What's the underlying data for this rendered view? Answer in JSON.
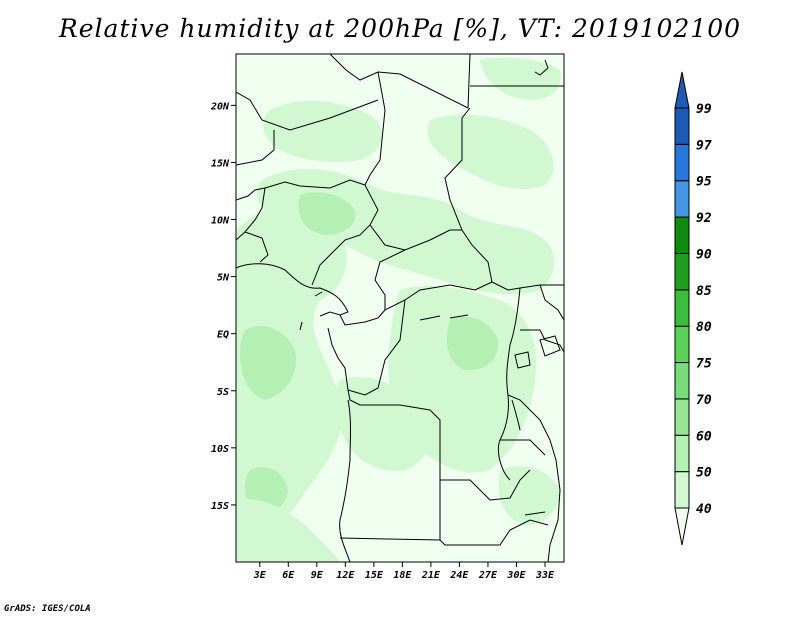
{
  "title": "Relative humidity at 200hPa [%], VT: 2019102100",
  "credit": "GrADS: IGES/COLA",
  "map": {
    "lat_labels": [
      {
        "value": 20,
        "text": "20N"
      },
      {
        "value": 15,
        "text": "15N"
      },
      {
        "value": 10,
        "text": "10N"
      },
      {
        "value": 5,
        "text": "5N"
      },
      {
        "value": 0,
        "text": "EQ"
      },
      {
        "value": -5,
        "text": "5S"
      },
      {
        "value": -10,
        "text": "10S"
      },
      {
        "value": -15,
        "text": "15S"
      }
    ],
    "lon_labels": [
      {
        "value": 3,
        "text": "3E"
      },
      {
        "value": 6,
        "text": "6E"
      },
      {
        "value": 9,
        "text": "9E"
      },
      {
        "value": 12,
        "text": "12E"
      },
      {
        "value": 15,
        "text": "15E"
      },
      {
        "value": 18,
        "text": "18E"
      },
      {
        "value": 21,
        "text": "21E"
      },
      {
        "value": 24,
        "text": "24E"
      },
      {
        "value": 27,
        "text": "27E"
      },
      {
        "value": 30,
        "text": "30E"
      },
      {
        "value": 33,
        "text": "33E"
      }
    ],
    "lon_range": [
      0.5,
      35
    ],
    "lat_range": [
      -20,
      24.5
    ]
  },
  "colorbar": {
    "levels": [
      "40",
      "50",
      "60",
      "70",
      "75",
      "80",
      "85",
      "90",
      "92",
      "95",
      "97",
      "99"
    ],
    "colors": [
      "#f0fff0",
      "#d2f8d2",
      "#b4f0b4",
      "#96e696",
      "#78dc78",
      "#5ad25a",
      "#3cbe3c",
      "#1ea01e",
      "#0f8c0f",
      "#4696e6",
      "#2878dc",
      "#1e5ab4",
      "#1e5ab4"
    ]
  },
  "colors": {
    "land": "#ffffff",
    "humid_light": "#d2f8d2",
    "humid_mid": "#b4f0b4",
    "humid_faint": "#f0fff0",
    "border": "#000000"
  }
}
